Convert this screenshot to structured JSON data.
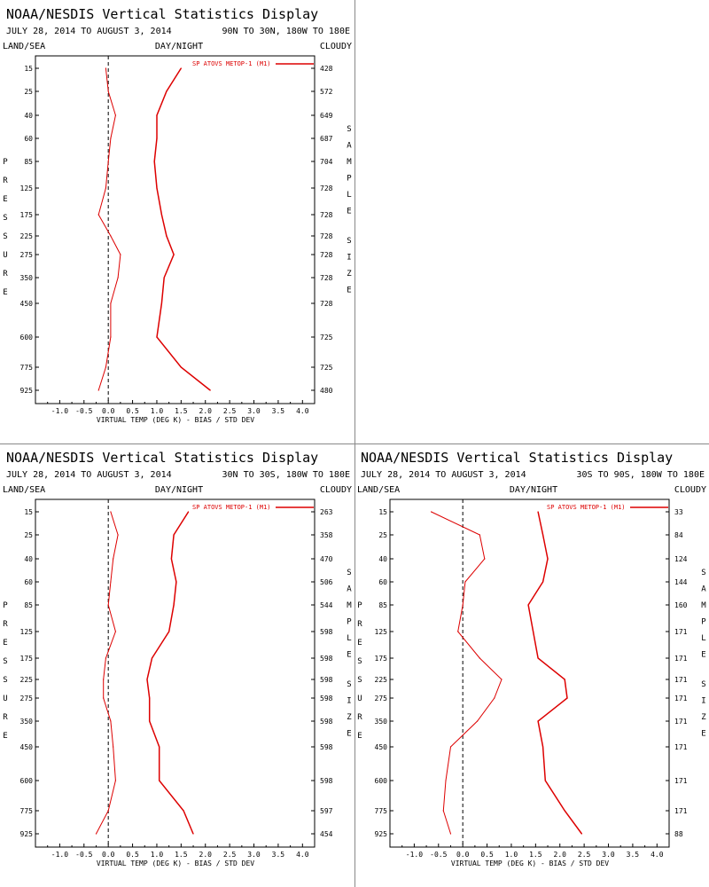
{
  "header": {
    "title": "NOAA/NESDIS Vertical Statistics Display",
    "date_range": "JULY 28, 2014 TO AUGUST 3, 2014",
    "land_sea": "LAND/SEA",
    "day_night": "DAY/NIGHT",
    "cloudy": "CLOUDY",
    "left_axis_letters": [
      "P",
      "R",
      "E",
      "S",
      "S",
      "U",
      "R",
      "E"
    ],
    "right_axis_letters": [
      "S",
      "A",
      "M",
      "P",
      "L",
      "E",
      "S",
      "I",
      "Z",
      "E"
    ]
  },
  "colors": {
    "series": "#dd0000",
    "axis": "#000000",
    "zero_line": "#000000"
  },
  "chart_data": [
    {
      "type": "line",
      "region": "90N TO 30N, 180W TO 180E",
      "xlabel": "VIRTUAL TEMP (DEG K) - BIAS / STD DEV",
      "xlim": [
        -1.5,
        4.25
      ],
      "xticks": [
        "-1.0",
        "-0.5",
        "0.0",
        "0.5",
        "1.0",
        "1.5",
        "2.0",
        "2.5",
        "3.0",
        "3.5",
        "4.0"
      ],
      "pressure_levels": [
        "15",
        "25",
        "40",
        "60",
        "85",
        "125",
        "175",
        "225",
        "275",
        "350",
        "450",
        "600",
        "775",
        "925"
      ],
      "sample_size": [
        "428",
        "572",
        "649",
        "687",
        "704",
        "728",
        "728",
        "728",
        "728",
        "728",
        "728",
        "725",
        "725",
        "480"
      ],
      "legend": "SP ATOVS METOP-1 (M1)",
      "series": [
        {
          "name": "bias",
          "values": [
            -0.05,
            0.0,
            0.15,
            0.05,
            0.0,
            -0.05,
            -0.2,
            0.05,
            0.25,
            0.2,
            0.05,
            0.05,
            -0.05,
            -0.2
          ]
        },
        {
          "name": "std dev",
          "values": [
            1.5,
            1.2,
            1.0,
            1.0,
            0.95,
            1.0,
            1.1,
            1.2,
            1.35,
            1.15,
            1.1,
            1.0,
            1.5,
            2.1
          ]
        }
      ]
    },
    {
      "type": "line",
      "region": "30N TO 30S, 180W TO 180E",
      "xlabel": "VIRTUAL TEMP (DEG K) - BIAS / STD DEV",
      "xlim": [
        -1.5,
        4.25
      ],
      "xticks": [
        "-1.0",
        "-0.5",
        "0.0",
        "0.5",
        "1.0",
        "1.5",
        "2.0",
        "2.5",
        "3.0",
        "3.5",
        "4.0"
      ],
      "pressure_levels": [
        "15",
        "25",
        "40",
        "60",
        "85",
        "125",
        "175",
        "225",
        "275",
        "350",
        "450",
        "600",
        "775",
        "925"
      ],
      "sample_size": [
        "263",
        "358",
        "470",
        "506",
        "544",
        "598",
        "598",
        "598",
        "598",
        "598",
        "598",
        "598",
        "597",
        "454"
      ],
      "legend": "SP ATOVS METOP-1 (M1)",
      "series": [
        {
          "name": "bias",
          "values": [
            0.05,
            0.2,
            0.1,
            0.05,
            0.0,
            0.15,
            -0.05,
            -0.1,
            -0.1,
            0.05,
            0.1,
            0.15,
            0.0,
            -0.25
          ]
        },
        {
          "name": "std dev",
          "values": [
            1.65,
            1.35,
            1.3,
            1.4,
            1.35,
            1.25,
            0.9,
            0.8,
            0.85,
            0.85,
            1.05,
            1.05,
            1.55,
            1.75
          ]
        }
      ]
    },
    {
      "type": "line",
      "region": "30S TO 90S, 180W TO 180E",
      "xlabel": "VIRTUAL TEMP (DEG K) - BIAS / STD DEV",
      "xlim": [
        -1.5,
        4.25
      ],
      "xticks": [
        "-1.0",
        "-0.5",
        "0.0",
        "0.5",
        "1.0",
        "1.5",
        "2.0",
        "2.5",
        "3.0",
        "3.5",
        "4.0"
      ],
      "pressure_levels": [
        "15",
        "25",
        "40",
        "60",
        "85",
        "125",
        "175",
        "225",
        "275",
        "350",
        "450",
        "600",
        "775",
        "925"
      ],
      "sample_size": [
        "33",
        "84",
        "124",
        "144",
        "160",
        "171",
        "171",
        "171",
        "171",
        "171",
        "171",
        "171",
        "171",
        "88"
      ],
      "legend": "SP ATOVS METOP-1 (M1)",
      "series": [
        {
          "name": "bias",
          "values": [
            -0.65,
            0.35,
            0.45,
            0.05,
            0.0,
            -0.1,
            0.35,
            0.8,
            0.65,
            0.3,
            -0.25,
            -0.35,
            -0.4,
            -0.25
          ]
        },
        {
          "name": "std dev",
          "values": [
            1.55,
            1.65,
            1.75,
            1.65,
            1.35,
            1.45,
            1.55,
            2.1,
            2.15,
            1.55,
            1.65,
            1.7,
            2.1,
            2.45
          ]
        }
      ]
    }
  ]
}
